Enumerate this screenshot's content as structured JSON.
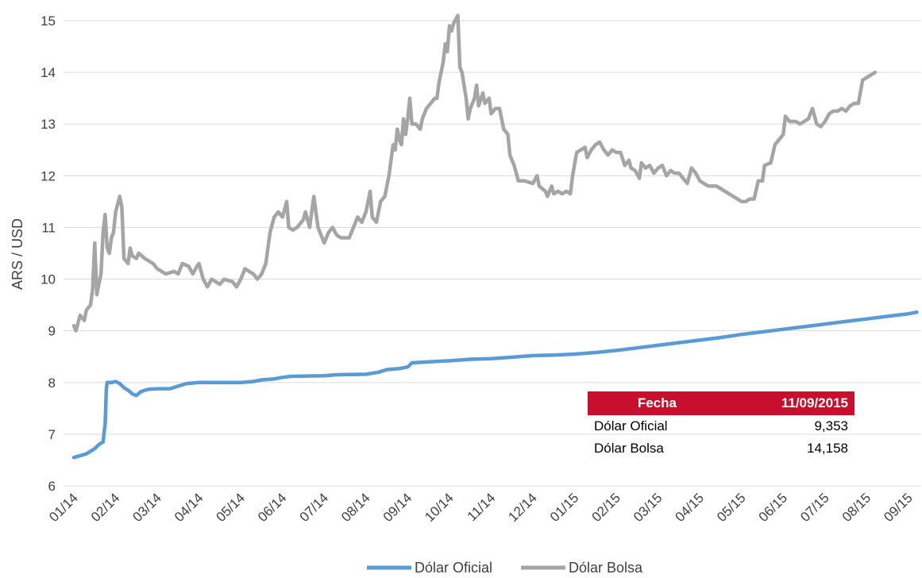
{
  "chart_data": {
    "type": "line",
    "ylabel": "ARS / USD",
    "xlabel": "",
    "ylim": [
      6,
      15
    ],
    "yticks": [
      6,
      7,
      8,
      9,
      10,
      11,
      12,
      13,
      14,
      15
    ],
    "categories": [
      "01/14",
      "02/14",
      "03/14",
      "04/14",
      "05/14",
      "06/14",
      "07/14",
      "08/14",
      "09/14",
      "10/14",
      "11/14",
      "12/14",
      "01/15",
      "02/15",
      "03/15",
      "04/15",
      "05/15",
      "06/15",
      "07/15",
      "08/15",
      "09/15"
    ],
    "grid": true,
    "legend": "bottom",
    "series": [
      {
        "name": "Dólar Oficial",
        "color": "#5b9bd5",
        "points": [
          [
            0,
            6.55
          ],
          [
            0.3,
            6.62
          ],
          [
            0.5,
            6.72
          ],
          [
            0.6,
            6.8
          ],
          [
            0.7,
            6.85
          ],
          [
            0.72,
            7.0
          ],
          [
            0.75,
            7.2
          ],
          [
            0.78,
            7.9
          ],
          [
            0.8,
            8.0
          ],
          [
            0.9,
            8.0
          ],
          [
            1.0,
            8.02
          ],
          [
            1.1,
            7.98
          ],
          [
            1.2,
            7.9
          ],
          [
            1.3,
            7.85
          ],
          [
            1.4,
            7.78
          ],
          [
            1.5,
            7.75
          ],
          [
            1.6,
            7.82
          ],
          [
            1.7,
            7.85
          ],
          [
            1.8,
            7.87
          ],
          [
            2.0,
            7.88
          ],
          [
            2.3,
            7.88
          ],
          [
            2.5,
            7.93
          ],
          [
            2.7,
            7.98
          ],
          [
            3.0,
            8.0
          ],
          [
            4.0,
            8.0
          ],
          [
            4.3,
            8.02
          ],
          [
            4.5,
            8.05
          ],
          [
            4.8,
            8.07
          ],
          [
            5.0,
            8.1
          ],
          [
            5.2,
            8.12
          ],
          [
            6.0,
            8.13
          ],
          [
            6.3,
            8.15
          ],
          [
            7.0,
            8.16
          ],
          [
            7.3,
            8.2
          ],
          [
            7.5,
            8.25
          ],
          [
            7.8,
            8.27
          ],
          [
            8.0,
            8.3
          ],
          [
            8.1,
            8.38
          ],
          [
            8.5,
            8.4
          ],
          [
            9.0,
            8.42
          ],
          [
            9.5,
            8.45
          ],
          [
            10.0,
            8.46
          ],
          [
            10.5,
            8.49
          ],
          [
            11.0,
            8.52
          ],
          [
            11.5,
            8.53
          ],
          [
            12.0,
            8.55
          ],
          [
            12.5,
            8.58
          ],
          [
            13.0,
            8.62
          ],
          [
            13.5,
            8.67
          ],
          [
            14.0,
            8.72
          ],
          [
            14.5,
            8.77
          ],
          [
            15.0,
            8.82
          ],
          [
            15.5,
            8.87
          ],
          [
            16.0,
            8.93
          ],
          [
            16.5,
            8.98
          ],
          [
            17.0,
            9.03
          ],
          [
            17.5,
            9.08
          ],
          [
            18.0,
            9.13
          ],
          [
            18.5,
            9.18
          ],
          [
            19.0,
            9.23
          ],
          [
            19.5,
            9.28
          ],
          [
            20.0,
            9.33
          ],
          [
            20.2,
            9.36
          ]
        ]
      },
      {
        "name": "Dólar Bolsa",
        "color": "#a5a5a5",
        "points": [
          [
            0,
            9.1
          ],
          [
            0.05,
            9.0
          ],
          [
            0.15,
            9.3
          ],
          [
            0.25,
            9.2
          ],
          [
            0.3,
            9.4
          ],
          [
            0.4,
            9.5
          ],
          [
            0.45,
            9.8
          ],
          [
            0.5,
            10.7
          ],
          [
            0.55,
            9.7
          ],
          [
            0.6,
            9.9
          ],
          [
            0.65,
            10.1
          ],
          [
            0.7,
            10.9
          ],
          [
            0.75,
            11.25
          ],
          [
            0.8,
            10.6
          ],
          [
            0.85,
            10.5
          ],
          [
            0.9,
            10.8
          ],
          [
            0.95,
            10.9
          ],
          [
            1.0,
            11.3
          ],
          [
            1.1,
            11.6
          ],
          [
            1.15,
            11.4
          ],
          [
            1.2,
            10.4
          ],
          [
            1.3,
            10.3
          ],
          [
            1.35,
            10.6
          ],
          [
            1.4,
            10.45
          ],
          [
            1.5,
            10.4
          ],
          [
            1.55,
            10.5
          ],
          [
            1.7,
            10.4
          ],
          [
            1.9,
            10.3
          ],
          [
            2.0,
            10.2
          ],
          [
            2.2,
            10.1
          ],
          [
            2.4,
            10.15
          ],
          [
            2.5,
            10.1
          ],
          [
            2.6,
            10.3
          ],
          [
            2.75,
            10.25
          ],
          [
            2.85,
            10.1
          ],
          [
            2.95,
            10.25
          ],
          [
            3.0,
            10.3
          ],
          [
            3.1,
            10.0
          ],
          [
            3.2,
            9.85
          ],
          [
            3.3,
            10.0
          ],
          [
            3.4,
            9.95
          ],
          [
            3.5,
            9.9
          ],
          [
            3.6,
            10.0
          ],
          [
            3.8,
            9.95
          ],
          [
            3.9,
            9.85
          ],
          [
            4.0,
            10.0
          ],
          [
            4.1,
            10.2
          ],
          [
            4.2,
            10.15
          ],
          [
            4.3,
            10.1
          ],
          [
            4.4,
            10.0
          ],
          [
            4.5,
            10.1
          ],
          [
            4.6,
            10.3
          ],
          [
            4.7,
            10.9
          ],
          [
            4.8,
            11.2
          ],
          [
            4.9,
            11.3
          ],
          [
            5.0,
            11.2
          ],
          [
            5.1,
            11.5
          ],
          [
            5.15,
            11.0
          ],
          [
            5.25,
            10.95
          ],
          [
            5.35,
            11.0
          ],
          [
            5.5,
            11.15
          ],
          [
            5.55,
            11.3
          ],
          [
            5.65,
            11.0
          ],
          [
            5.75,
            11.6
          ],
          [
            5.85,
            11.0
          ],
          [
            6.0,
            10.7
          ],
          [
            6.1,
            10.9
          ],
          [
            6.2,
            11.0
          ],
          [
            6.3,
            10.85
          ],
          [
            6.4,
            10.8
          ],
          [
            6.5,
            10.8
          ],
          [
            6.6,
            10.8
          ],
          [
            6.7,
            11.0
          ],
          [
            6.8,
            11.2
          ],
          [
            6.9,
            11.1
          ],
          [
            7.0,
            11.3
          ],
          [
            7.1,
            11.7
          ],
          [
            7.15,
            11.2
          ],
          [
            7.25,
            11.1
          ],
          [
            7.35,
            11.5
          ],
          [
            7.45,
            11.6
          ],
          [
            7.55,
            12.0
          ],
          [
            7.6,
            12.3
          ],
          [
            7.65,
            12.6
          ],
          [
            7.7,
            12.5
          ],
          [
            7.75,
            12.9
          ],
          [
            7.8,
            12.7
          ],
          [
            7.85,
            12.6
          ],
          [
            7.9,
            13.1
          ],
          [
            7.95,
            12.8
          ],
          [
            8.0,
            13.1
          ],
          [
            8.05,
            13.5
          ],
          [
            8.1,
            13.0
          ],
          [
            8.2,
            13.0
          ],
          [
            8.3,
            12.9
          ],
          [
            8.35,
            13.1
          ],
          [
            8.45,
            13.3
          ],
          [
            8.55,
            13.4
          ],
          [
            8.65,
            13.5
          ],
          [
            8.7,
            13.5
          ],
          [
            8.75,
            13.8
          ],
          [
            8.85,
            14.2
          ],
          [
            8.9,
            14.55
          ],
          [
            8.95,
            14.4
          ],
          [
            9.0,
            14.9
          ],
          [
            9.05,
            14.8
          ],
          [
            9.1,
            14.95
          ],
          [
            9.2,
            15.1
          ],
          [
            9.25,
            14.1
          ],
          [
            9.3,
            14.0
          ],
          [
            9.4,
            13.5
          ],
          [
            9.45,
            13.1
          ],
          [
            9.5,
            13.3
          ],
          [
            9.6,
            13.5
          ],
          [
            9.65,
            13.75
          ],
          [
            9.7,
            13.35
          ],
          [
            9.8,
            13.6
          ],
          [
            9.85,
            13.4
          ],
          [
            9.95,
            13.5
          ],
          [
            10.0,
            13.2
          ],
          [
            10.1,
            13.3
          ],
          [
            10.2,
            13.3
          ],
          [
            10.3,
            12.9
          ],
          [
            10.4,
            12.8
          ],
          [
            10.45,
            12.4
          ],
          [
            10.55,
            12.2
          ],
          [
            10.65,
            11.9
          ],
          [
            10.8,
            11.9
          ],
          [
            11.0,
            11.85
          ],
          [
            11.1,
            12.0
          ],
          [
            11.15,
            11.8
          ],
          [
            11.3,
            11.7
          ],
          [
            11.35,
            11.6
          ],
          [
            11.45,
            11.8
          ],
          [
            11.5,
            11.65
          ],
          [
            11.6,
            11.7
          ],
          [
            11.7,
            11.65
          ],
          [
            11.8,
            11.7
          ],
          [
            11.9,
            11.65
          ],
          [
            11.95,
            12.0
          ],
          [
            12.05,
            12.45
          ],
          [
            12.15,
            12.5
          ],
          [
            12.25,
            12.55
          ],
          [
            12.3,
            12.35
          ],
          [
            12.4,
            12.5
          ],
          [
            12.5,
            12.6
          ],
          [
            12.6,
            12.65
          ],
          [
            12.7,
            12.5
          ],
          [
            12.8,
            12.4
          ],
          [
            12.9,
            12.5
          ],
          [
            13.0,
            12.45
          ],
          [
            13.1,
            12.45
          ],
          [
            13.2,
            12.2
          ],
          [
            13.3,
            12.3
          ],
          [
            13.35,
            12.15
          ],
          [
            13.45,
            12.1
          ],
          [
            13.55,
            11.95
          ],
          [
            13.6,
            12.25
          ],
          [
            13.7,
            12.15
          ],
          [
            13.8,
            12.2
          ],
          [
            13.9,
            12.05
          ],
          [
            14.0,
            12.15
          ],
          [
            14.1,
            12.2
          ],
          [
            14.2,
            12.0
          ],
          [
            14.3,
            12.1
          ],
          [
            14.4,
            12.05
          ],
          [
            14.5,
            12.05
          ],
          [
            14.6,
            11.95
          ],
          [
            14.7,
            11.85
          ],
          [
            14.8,
            12.15
          ],
          [
            14.9,
            12.05
          ],
          [
            15.0,
            11.9
          ],
          [
            15.1,
            11.85
          ],
          [
            15.2,
            11.8
          ],
          [
            15.4,
            11.8
          ],
          [
            15.5,
            11.75
          ],
          [
            15.6,
            11.7
          ],
          [
            15.7,
            11.65
          ],
          [
            15.8,
            11.6
          ],
          [
            15.9,
            11.55
          ],
          [
            16.0,
            11.5
          ],
          [
            16.1,
            11.5
          ],
          [
            16.2,
            11.55
          ],
          [
            16.3,
            11.55
          ],
          [
            16.4,
            11.9
          ],
          [
            16.5,
            11.9
          ],
          [
            16.55,
            12.2
          ],
          [
            16.7,
            12.25
          ],
          [
            16.8,
            12.6
          ],
          [
            16.9,
            12.7
          ],
          [
            17.0,
            12.8
          ],
          [
            17.05,
            13.15
          ],
          [
            17.15,
            13.05
          ],
          [
            17.3,
            13.05
          ],
          [
            17.4,
            13.0
          ],
          [
            17.5,
            13.05
          ],
          [
            17.6,
            13.1
          ],
          [
            17.7,
            13.3
          ],
          [
            17.8,
            13.0
          ],
          [
            17.9,
            12.95
          ],
          [
            18.0,
            13.05
          ],
          [
            18.1,
            13.2
          ],
          [
            18.2,
            13.25
          ],
          [
            18.3,
            13.25
          ],
          [
            18.4,
            13.3
          ],
          [
            18.5,
            13.25
          ],
          [
            18.6,
            13.35
          ],
          [
            18.7,
            13.4
          ],
          [
            18.8,
            13.4
          ],
          [
            18.9,
            13.85
          ],
          [
            19.0,
            13.9
          ],
          [
            19.1,
            13.95
          ],
          [
            19.2,
            14.0
          ]
        ]
      }
    ]
  },
  "table": {
    "header": [
      "Fecha",
      "11/09/2015"
    ],
    "rows": [
      {
        "label": "Dólar Oficial",
        "value": "9,353"
      },
      {
        "label": "Dólar Bolsa",
        "value": "14,158"
      }
    ]
  }
}
